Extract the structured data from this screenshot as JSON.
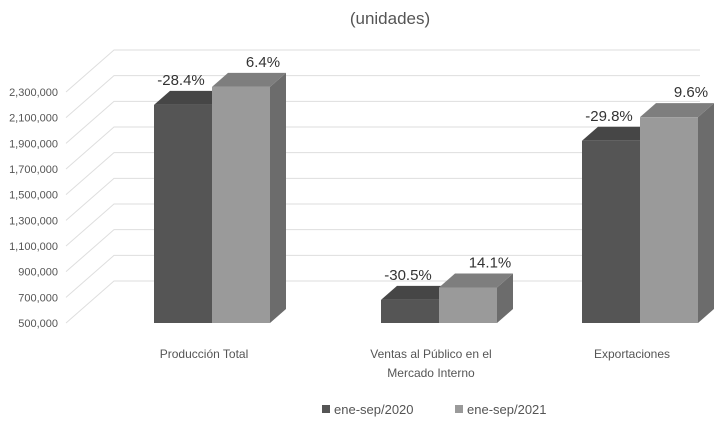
{
  "chart_data": {
    "type": "bar",
    "title": "",
    "subtitle": "(unidades)",
    "categories": [
      [
        "Producción Total"
      ],
      [
        "Ventas al Público en el",
        "Mercado Interno"
      ],
      [
        "Exportaciones"
      ]
    ],
    "series": [
      {
        "name": "ene-sep/2020",
        "values": [
          2200000,
          680000,
          1920000
        ],
        "labels": [
          "-28.4%",
          "-30.5%",
          "-29.8%"
        ]
      },
      {
        "name": "ene-sep/2021",
        "values": [
          2340000,
          777000,
          2104000
        ],
        "labels": [
          "6.4%",
          "14.1%",
          "9.6%"
        ]
      }
    ],
    "yticks": [
      "2,300,000",
      "2,100,000",
      "1,900,000",
      "1,700,000",
      "1,500,000",
      "1,300,000",
      "1,100,000",
      "900,000",
      "700,000",
      "500,000"
    ],
    "ylim": [
      500000,
      2300000
    ],
    "grid": true,
    "legend_position": "bottom",
    "colors": {
      "series_2020": "#555555",
      "series_2021": "#9a9a9a",
      "grid": "#dedede"
    }
  }
}
